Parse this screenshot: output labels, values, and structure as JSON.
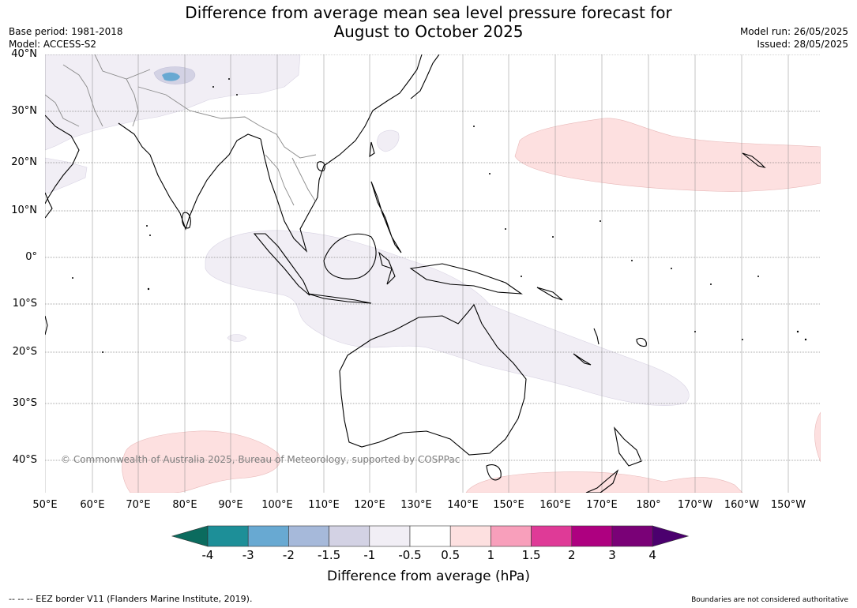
{
  "title_line1": "Difference from average mean sea level pressure forecast for",
  "title_line2": "August to October 2025",
  "meta_left": {
    "base_period": "Base period: 1981-2018",
    "model": "Model: ACCESS-S2"
  },
  "meta_right": {
    "model_run": "Model run: 26/05/2025",
    "issued": "Issued: 28/05/2025"
  },
  "lat_labels": [
    "40°N",
    "30°N",
    "20°N",
    "10°N",
    "0°",
    "10°S",
    "20°S",
    "30°S",
    "40°S"
  ],
  "lon_labels": [
    "50°E",
    "60°E",
    "70°E",
    "80°E",
    "90°E",
    "100°E",
    "110°E",
    "120°E",
    "130°E",
    "140°E",
    "150°E",
    "160°E",
    "170°E",
    "180°",
    "170°W",
    "160°W",
    "150°W"
  ],
  "colorbar": {
    "title": "Difference from average (hPa)",
    "tick_labels": [
      "-4",
      "-3",
      "-2",
      "-1.5",
      "-1",
      "-0.5",
      "0.5",
      "1",
      "1.5",
      "2",
      "3",
      "4"
    ],
    "colors": [
      "#0b6b5e",
      "#1d8f98",
      "#68a9d2",
      "#a6b9da",
      "#d3d2e4",
      "#f1eef5",
      "#ffffff",
      "#fde0e0",
      "#f89fbb",
      "#df3a97",
      "#ae0080",
      "#7a0177",
      "#4b006e"
    ]
  },
  "copyright": "© Commonwealth of Australia 2025, Bureau of Meteorology, supported by COSPPac",
  "footer_left": "--  --  -- EEZ border V11 (Flanders Marine Institute, 2019).",
  "footer_right": "Boundaries are not considered authoritative"
}
